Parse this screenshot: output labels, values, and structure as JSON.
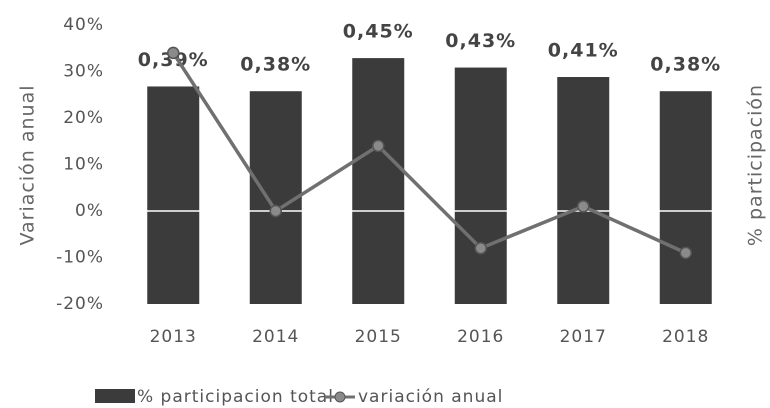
{
  "chart_data": {
    "type": "bar_line",
    "categories": [
      "2013",
      "2014",
      "2015",
      "2016",
      "2017",
      "2018"
    ],
    "ylabel": "Variación anual",
    "y2label": "% participación",
    "ylim": [
      -20,
      40
    ],
    "yticks": [
      {
        "value": 40,
        "label": "40%"
      },
      {
        "value": 30,
        "label": "30%"
      },
      {
        "value": 20,
        "label": "20%"
      },
      {
        "value": 10,
        "label": "10%"
      },
      {
        "value": 0,
        "label": "0%"
      },
      {
        "value": -10,
        "label": "-10%"
      },
      {
        "value": -20,
        "label": "-20%"
      }
    ],
    "y2lim": [
      -0.07,
      0.52
    ],
    "series": [
      {
        "name": "% participacion total",
        "color": "#3b3b3b",
        "kind": "bar",
        "axis": "y2",
        "values": [
          0.39,
          0.38,
          0.45,
          0.43,
          0.41,
          0.38
        ],
        "value_labels": [
          "0,39%",
          "0,38%",
          "0,45%",
          "0,43%",
          "0,41%",
          "0,38%"
        ]
      },
      {
        "name": "variación anual",
        "color": "#707070",
        "kind": "line",
        "values": [
          34,
          0,
          14,
          -8,
          1,
          -9
        ]
      }
    ]
  }
}
